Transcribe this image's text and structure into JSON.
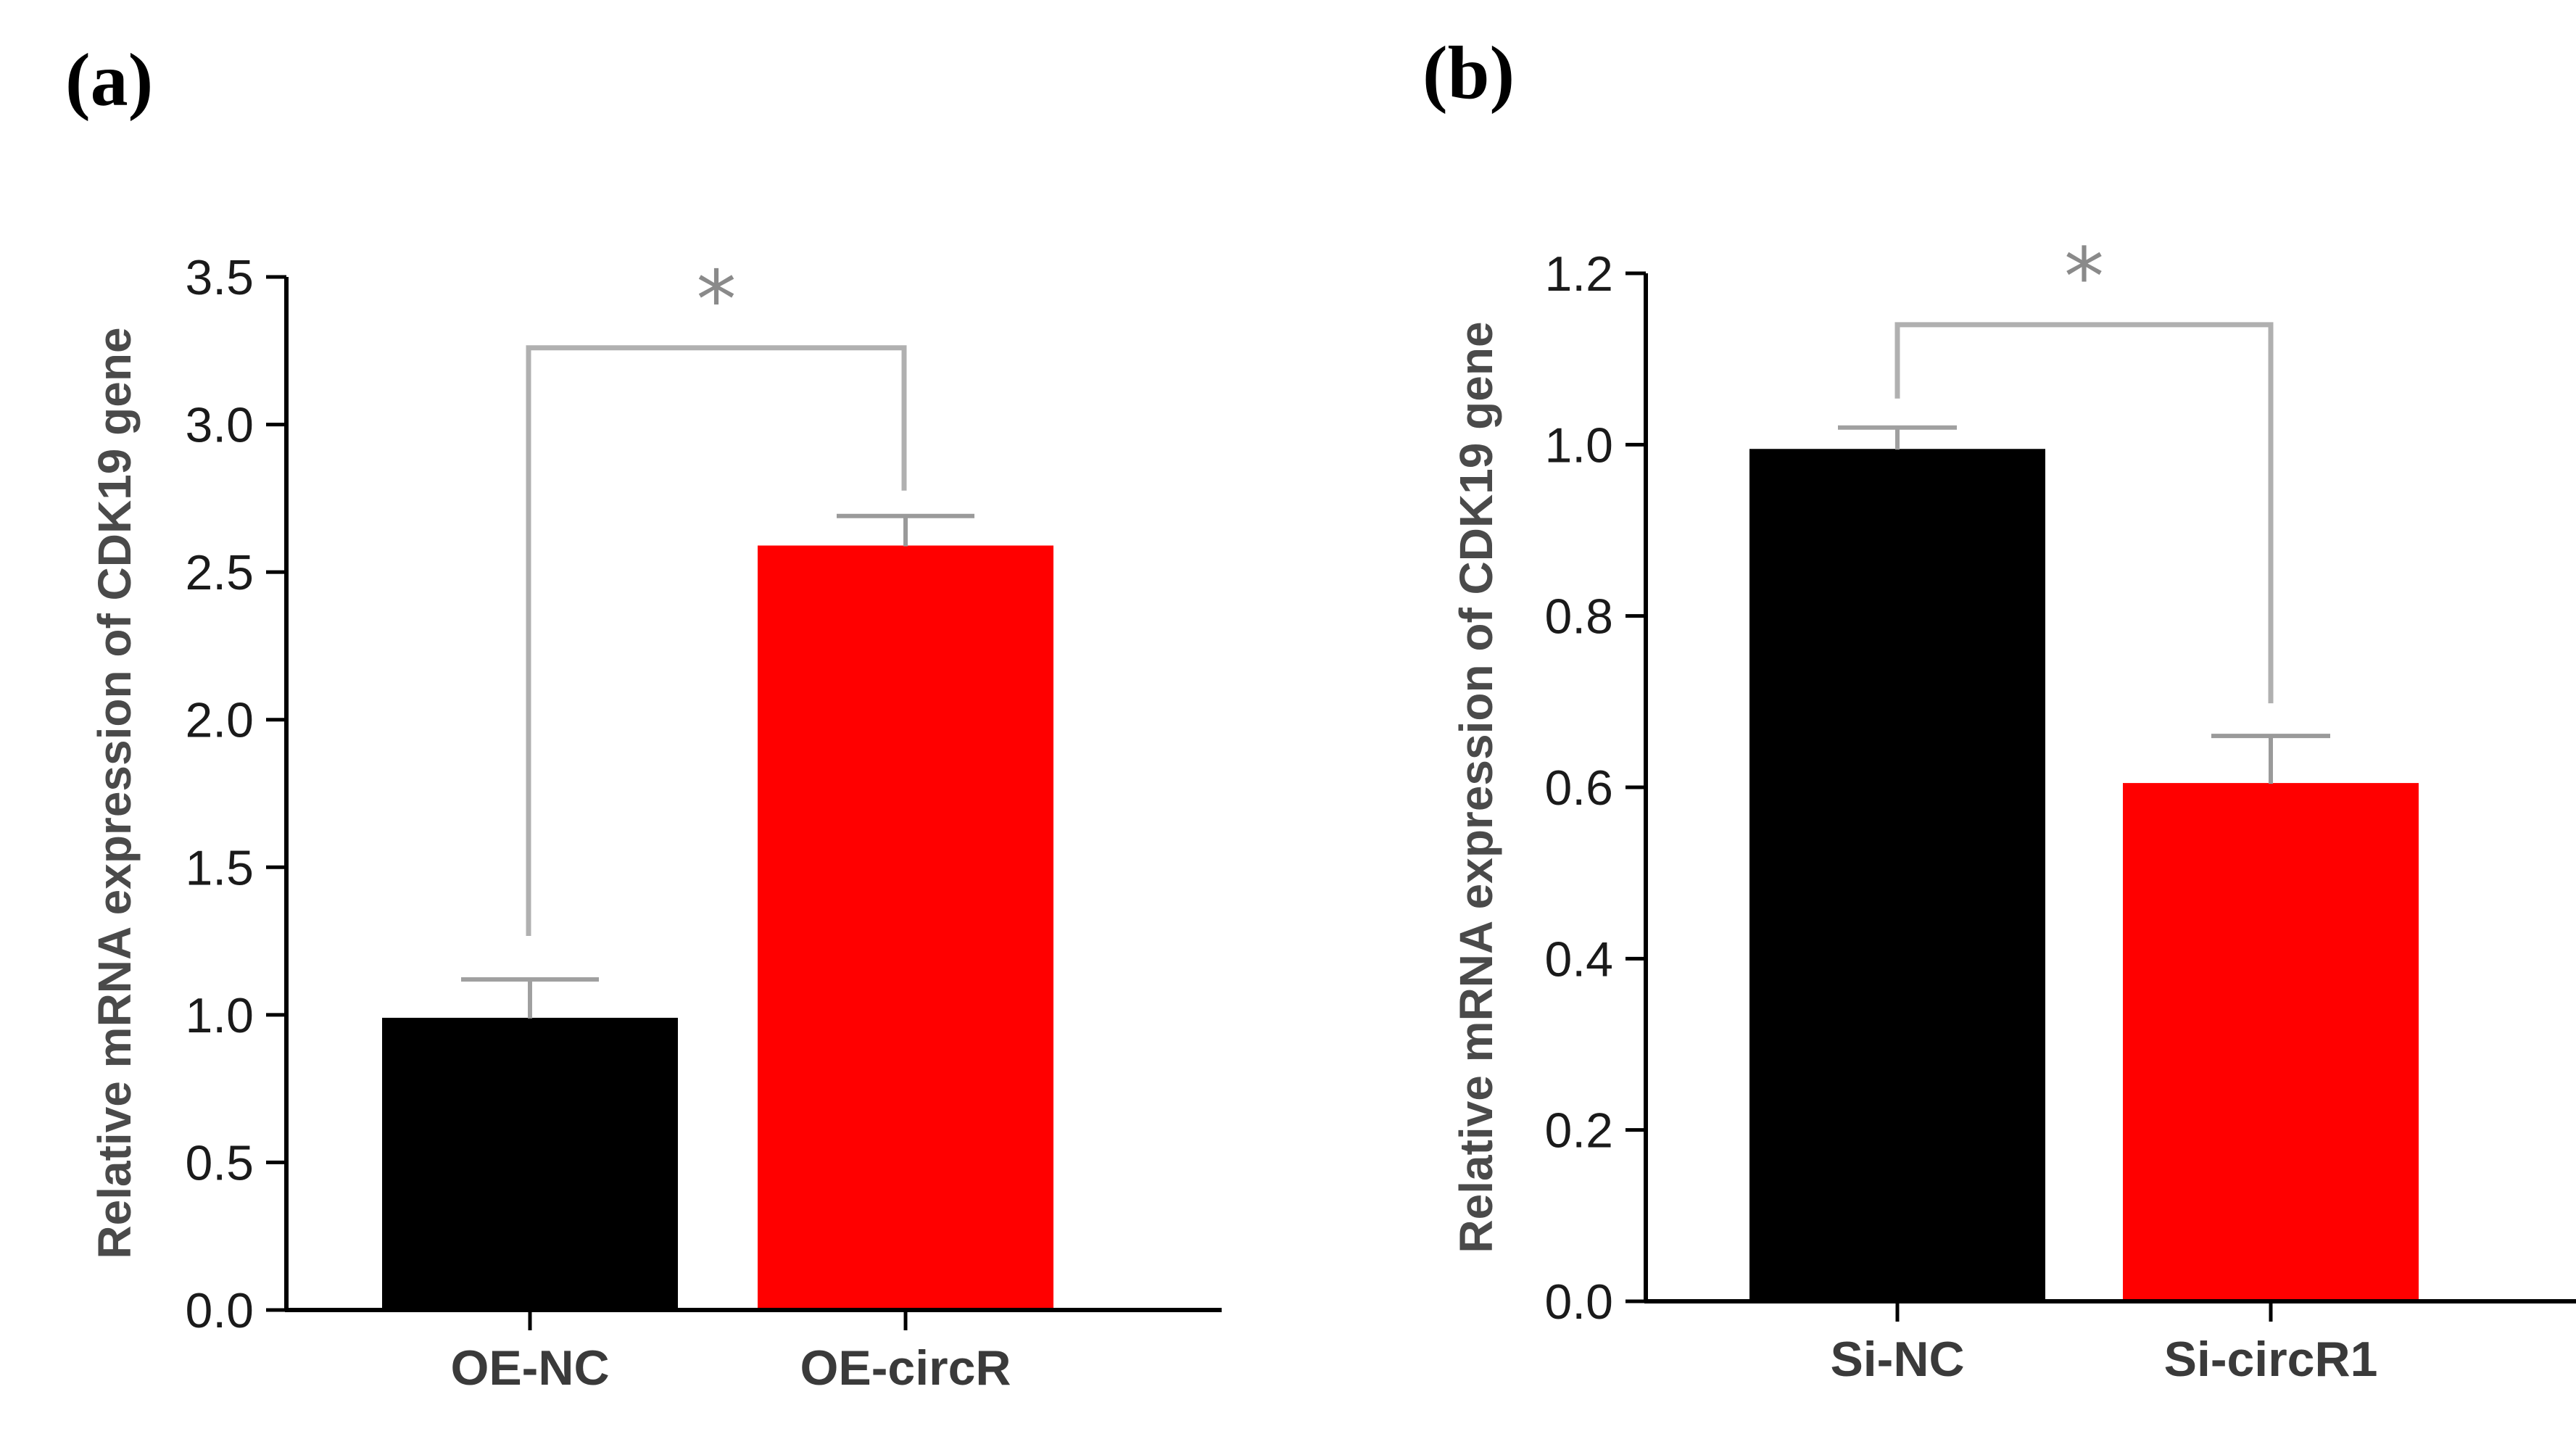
{
  "chart_data": [
    {
      "type": "bar",
      "panel_label": "(a)",
      "ylabel": "Relative mRNA expression of CDK19 gene",
      "categories": [
        "OE-NC",
        "OE-circR"
      ],
      "values": [
        0.99,
        2.59
      ],
      "errors": [
        0.13,
        0.1
      ],
      "colors": [
        "#000000",
        "#ff0000"
      ],
      "ylim": [
        0,
        3.5
      ],
      "yticks": [
        0.0,
        0.5,
        1.0,
        1.5,
        2.0,
        2.5,
        3.0,
        3.5
      ],
      "ytick_labels": [
        "0.0",
        "0.5",
        "1.0",
        "1.5",
        "2.0",
        "2.5",
        "3.0",
        "3.5"
      ],
      "significance": {
        "marker": "*",
        "between": [
          0,
          1
        ],
        "bracket_level": 3.26
      }
    },
    {
      "type": "bar",
      "panel_label": "(b)",
      "ylabel": "Relative mRNA expression of CDK19 gene",
      "categories": [
        "Si-NC",
        "Si-circR1"
      ],
      "values": [
        0.995,
        0.605
      ],
      "errors": [
        0.025,
        0.055
      ],
      "colors": [
        "#000000",
        "#ff0000"
      ],
      "ylim": [
        0,
        1.2
      ],
      "yticks": [
        0.0,
        0.2,
        0.4,
        0.6,
        0.8,
        1.0,
        1.2
      ],
      "ytick_labels": [
        "0.0",
        "0.2",
        "0.4",
        "0.6",
        "0.8",
        "1.0",
        "1.2"
      ],
      "significance": {
        "marker": "*",
        "between": [
          0,
          1
        ],
        "bracket_level": 1.14
      }
    }
  ]
}
